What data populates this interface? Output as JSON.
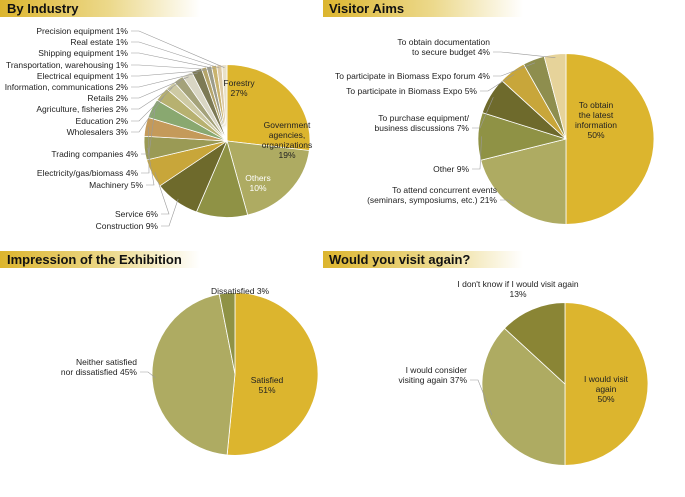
{
  "colors": {
    "gold": "#dcb52e",
    "olive_light": "#aeab62",
    "olive": "#8f9245",
    "olive_dark": "#6e6a2c",
    "beige": "#e6d39a"
  },
  "chart_data": [
    {
      "type": "pie",
      "title": "By Industry",
      "slices": [
        {
          "name": "Forestry",
          "value": 27,
          "label": "Forestry",
          "value_label": "27%",
          "color": "#dcb52e"
        },
        {
          "name": "Government agencies, organizations",
          "value": 19,
          "label": "Government agencies, organizations",
          "value_label": "19%",
          "color": "#aeab62"
        },
        {
          "name": "Others",
          "value": 10,
          "label": "Others",
          "value_label": "10%",
          "color": "#8f9245"
        },
        {
          "name": "Construction",
          "value": 9,
          "label": "Construction",
          "value_label": "9%",
          "color": "#6e6a2c"
        },
        {
          "name": "Service",
          "value": 6,
          "label": "Service",
          "value_label": "6%",
          "color": "#c8a63a"
        },
        {
          "name": "Machinery",
          "value": 5,
          "label": "Machinery",
          "value_label": "5%",
          "color": "#9a9a55"
        },
        {
          "name": "Electricity/gas/biomass",
          "value": 4,
          "label": "Electricity/gas/biomass",
          "value_label": "4%",
          "color": "#c49a5a"
        },
        {
          "name": "Trading companies",
          "value": 4,
          "label": "Trading companies",
          "value_label": "4%",
          "color": "#89a870"
        },
        {
          "name": "Wholesalers",
          "value": 3,
          "label": "Wholesalers",
          "value_label": "3%",
          "color": "#b7b170"
        },
        {
          "name": "Education",
          "value": 2,
          "label": "Education",
          "value_label": "2%",
          "color": "#cdc9a3"
        },
        {
          "name": "Agriculture, fisheries",
          "value": 2,
          "label": "Agriculture, fisheries",
          "value_label": "2%",
          "color": "#a4a27a"
        },
        {
          "name": "Retails",
          "value": 2,
          "label": "Retails",
          "value_label": "2%",
          "color": "#d9d6c4"
        },
        {
          "name": "Information, communications",
          "value": 2,
          "label": "Information, communications",
          "value_label": "2%",
          "color": "#7d7a55"
        },
        {
          "name": "Electrical equipment",
          "value": 1,
          "label": "Electrical equipment",
          "value_label": "1%",
          "color": "#b4a46a"
        },
        {
          "name": "Transportation, warehousing",
          "value": 1,
          "label": "Transportation, warehousing",
          "value_label": "1%",
          "color": "#9c9c8a"
        },
        {
          "name": "Shipping equipment",
          "value": 1,
          "label": "Shipping equipment",
          "value_label": "1%",
          "color": "#c9b36e"
        },
        {
          "name": "Real estate",
          "value": 1,
          "label": "Real estate",
          "value_label": "1%",
          "color": "#dcc9a4"
        },
        {
          "name": "Precision equipment",
          "value": 1,
          "label": "Precision equipment",
          "value_label": "1%",
          "color": "#e9e1c8"
        }
      ]
    },
    {
      "type": "pie",
      "title": "Visitor Aims",
      "slices": [
        {
          "name": "To obtain the latest information",
          "value": 50,
          "label": "To obtain the latest information",
          "value_label": "50%",
          "color": "#dcb52e"
        },
        {
          "name": "To attend concurrent events (seminars, symposiums, etc.)",
          "value": 21,
          "label": "To attend concurrent events (seminars, symposiums, etc.)",
          "value_label": "21%",
          "color": "#aeab62"
        },
        {
          "name": "Other",
          "value": 9,
          "label": "Other",
          "value_label": "9%",
          "color": "#8f9245"
        },
        {
          "name": "To purchase equipment/ business discussions",
          "value": 7,
          "label": "To purchase equipment/ business discussions",
          "value_label": "7%",
          "color": "#6e6a2c"
        },
        {
          "name": "To participate in Biomass Expo",
          "value": 5,
          "label": "To participate in Biomass Expo",
          "value_label": "5%",
          "color": "#c8a63a"
        },
        {
          "name": "To participate in Biomass Expo forum",
          "value": 4,
          "label": "To participate in Biomass Expo forum",
          "value_label": "4%",
          "color": "#8e8e4e"
        },
        {
          "name": "To obtain documentation to secure budget",
          "value": 4,
          "label": "To obtain documentation to secure budget",
          "value_label": "4%",
          "color": "#e6d39a"
        }
      ]
    },
    {
      "type": "pie",
      "title": "Impression of the Exhibition",
      "slices": [
        {
          "name": "Satisfied",
          "value": 51,
          "label": "Satisfied",
          "value_label": "51%",
          "color": "#dcb52e"
        },
        {
          "name": "Neither satisfied nor dissatisfied",
          "value": 45,
          "label": "Neither satisfied nor dissatisfied",
          "value_label": "45%",
          "color": "#aeab62"
        },
        {
          "name": "Dissatisfied",
          "value": 3,
          "label": "Dissatisfied",
          "value_label": "3%",
          "color": "#8f9245"
        }
      ]
    },
    {
      "type": "pie",
      "title": "Would you visit again?",
      "slices": [
        {
          "name": "I would visit again",
          "value": 50,
          "label": "I would visit again",
          "value_label": "50%",
          "color": "#dcb52e"
        },
        {
          "name": "I would consider visiting again",
          "value": 37,
          "label": "I would consider visiting again",
          "value_label": "37%",
          "color": "#aeab62"
        },
        {
          "name": "I don't know if I would visit again",
          "value": 13,
          "label": "I don't know if I would visit again",
          "value_label": "13%",
          "color": "#8a8535"
        }
      ]
    }
  ]
}
